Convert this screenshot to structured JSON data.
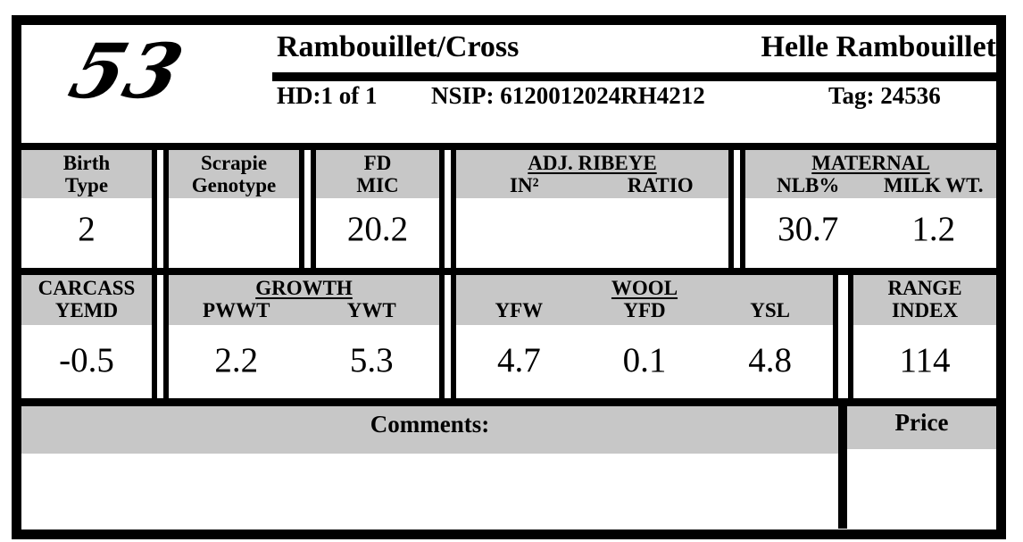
{
  "header": {
    "lot_number": "53",
    "breed": "Rambouillet/Cross",
    "consignor": "Helle Rambouillet",
    "hd": "HD:1 of 1",
    "nsip": "NSIP: 6120012024RH4212",
    "tag": "Tag: 24536"
  },
  "stats_row_1": {
    "birth_type": {
      "label1": "Birth",
      "label2": "Type",
      "value": "2"
    },
    "scrapie_genotype": {
      "label1": "Scrapie",
      "label2": "Genotype",
      "value": ""
    },
    "fd_mic": {
      "label1": "FD",
      "label2": "MIC",
      "value": "20.2"
    },
    "adj_ribeye": {
      "group": "ADJ. RIBEYE",
      "col1": "IN²",
      "col2": "RATIO",
      "value1": "",
      "value2": ""
    },
    "maternal": {
      "group": "MATERNAL",
      "col1": "NLB%",
      "col2": "MILK WT.",
      "value1": "30.7",
      "value2": "1.2"
    }
  },
  "stats_row_2": {
    "carcass_yemd": {
      "label1": "CARCASS",
      "label2": "YEMD",
      "value": "-0.5"
    },
    "growth": {
      "group": "GROWTH",
      "col1": "PWWT",
      "col2": "YWT",
      "value1": "2.2",
      "value2": "5.3"
    },
    "wool": {
      "group": "WOOL",
      "col1": "YFW",
      "col2": "YFD",
      "col3": "YSL",
      "value1": "4.7",
      "value2": "0.1",
      "value3": "4.8"
    },
    "range_index": {
      "label1": "RANGE",
      "label2": "INDEX",
      "value": "114"
    }
  },
  "footer": {
    "comments_label": "Comments:",
    "comments_text": "",
    "price_label": "Price",
    "price_text": ""
  },
  "colors": {
    "header_gray": "#c7c7c7",
    "ink": "#000000"
  }
}
